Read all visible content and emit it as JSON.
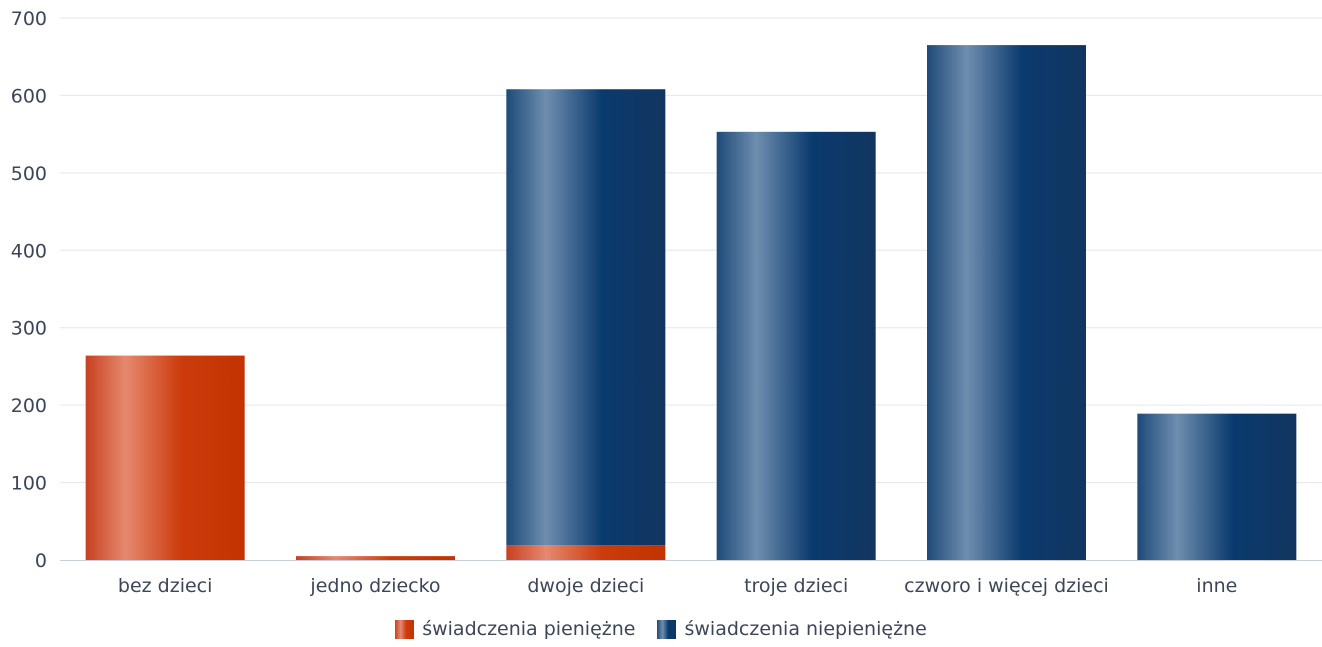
{
  "colors": {
    "pieniezne": "#cc3b0c",
    "niepieniezne": "#0a3a6e",
    "grid": "#e6e6e6",
    "axis": "#c9cdd6",
    "text": "#3c4658"
  },
  "legend": {
    "items": [
      {
        "label": "świadczenia pieniężne"
      },
      {
        "label": "świadczenia niepieniężne"
      }
    ]
  },
  "chart_data": {
    "type": "bar",
    "stacked": true,
    "categories": [
      "bez dzieci",
      "jedno dziecko",
      "dwoje dzieci",
      "troje dzieci",
      "czworo i więcej dzieci",
      "inne"
    ],
    "series": [
      {
        "name": "świadczenia pieniężne",
        "values": [
          264,
          5,
          19,
          0,
          0,
          0
        ]
      },
      {
        "name": "świadczenia niepieniężne",
        "values": [
          0,
          0,
          589,
          553,
          665,
          189
        ]
      }
    ],
    "ylim": [
      0,
      700
    ],
    "yticks": [
      0,
      100,
      200,
      300,
      400,
      500,
      600,
      700
    ],
    "grid": true,
    "legend_position": "bottom"
  }
}
